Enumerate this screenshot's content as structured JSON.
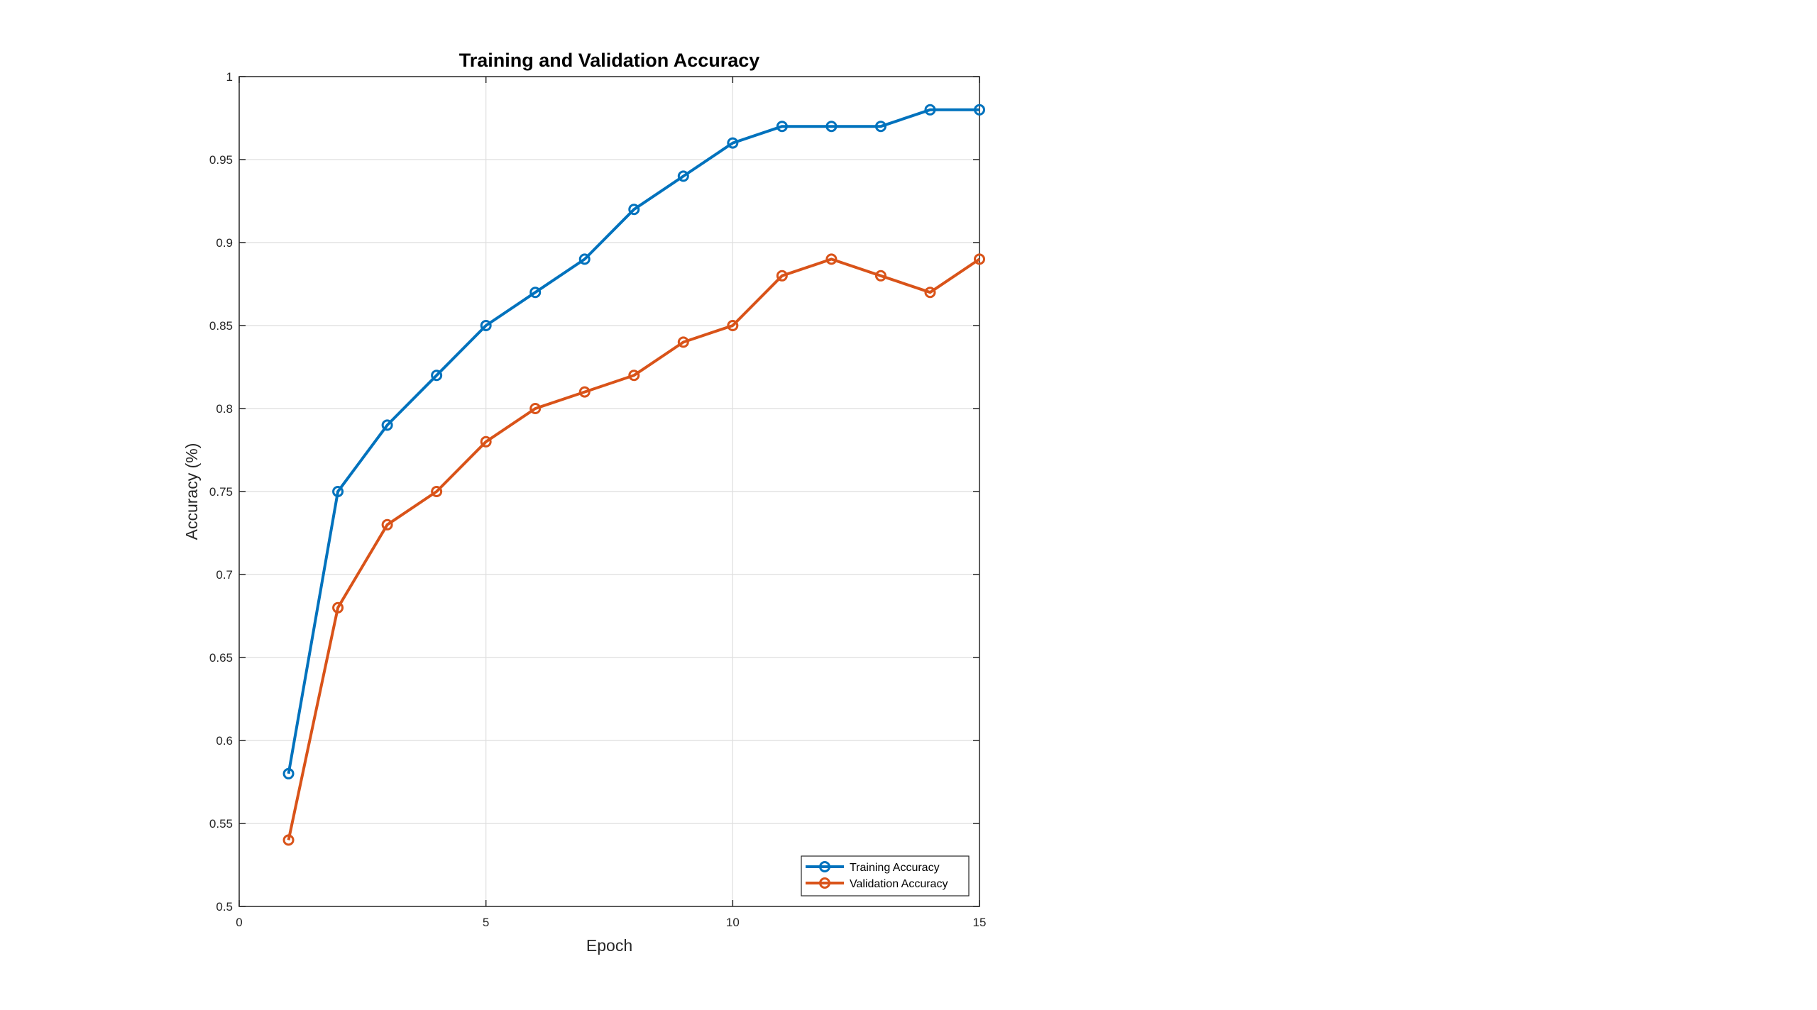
{
  "chart_data": {
    "type": "line",
    "title": "Training and Validation Accuracy",
    "xlabel": "Epoch",
    "ylabel": "Accuracy (%)",
    "xlim": [
      0,
      15
    ],
    "ylim": [
      0.5,
      1
    ],
    "xticks": [
      0,
      5,
      10,
      15
    ],
    "yticks": [
      0.5,
      0.55,
      0.6,
      0.65,
      0.7,
      0.75,
      0.8,
      0.85,
      0.9,
      0.95,
      1
    ],
    "ytick_labels": [
      "0.5",
      "0.55",
      "0.6",
      "0.65",
      "0.7",
      "0.75",
      "0.8",
      "0.85",
      "0.9",
      "0.95",
      "1"
    ],
    "xtick_labels": [
      "0",
      "5",
      "10",
      "15"
    ],
    "grid": true,
    "legend_position": "bottom-right",
    "x": [
      1,
      2,
      3,
      4,
      5,
      6,
      7,
      8,
      9,
      10,
      11,
      12,
      13,
      14,
      15
    ],
    "series": [
      {
        "name": "Training Accuracy",
        "color": "#0072BD",
        "marker": "circle",
        "values": [
          0.58,
          0.75,
          0.79,
          0.82,
          0.85,
          0.87,
          0.89,
          0.92,
          0.94,
          0.96,
          0.97,
          0.97,
          0.97,
          0.98,
          0.98
        ]
      },
      {
        "name": "Validation Accuracy",
        "color": "#D95319",
        "marker": "circle",
        "values": [
          0.54,
          0.68,
          0.73,
          0.75,
          0.78,
          0.8,
          0.81,
          0.82,
          0.84,
          0.85,
          0.88,
          0.89,
          0.88,
          0.87,
          0.89
        ]
      }
    ]
  }
}
